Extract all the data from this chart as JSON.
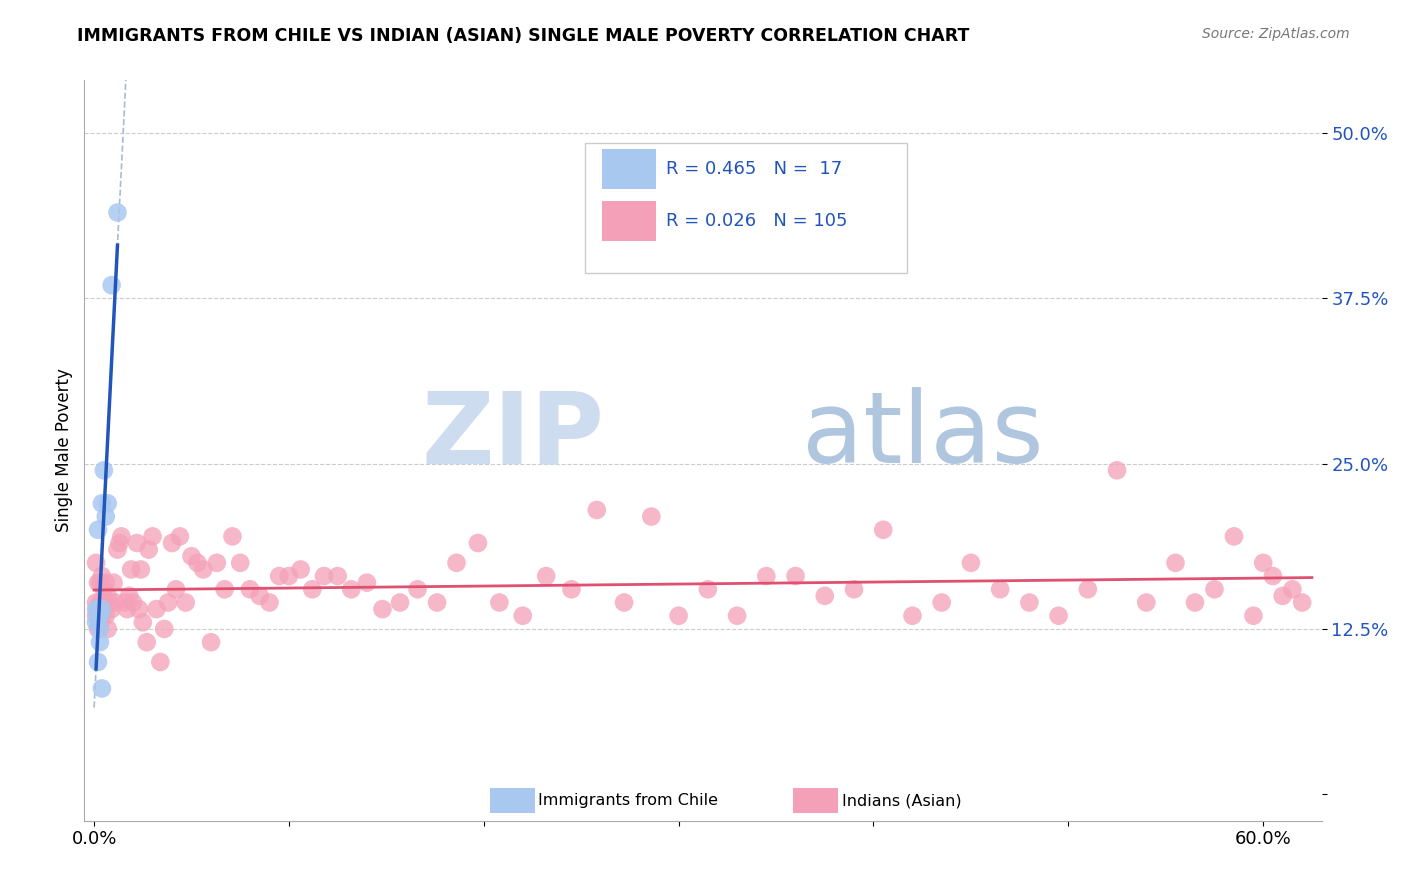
{
  "title": "IMMIGRANTS FROM CHILE VS INDIAN (ASIAN) SINGLE MALE POVERTY CORRELATION CHART",
  "source": "Source: ZipAtlas.com",
  "chile_R": 0.465,
  "chile_N": 17,
  "indian_R": 0.026,
  "indian_N": 105,
  "chile_color": "#a8c8f0",
  "indian_color": "#f4a0b8",
  "chile_line_color": "#2255bb",
  "indian_line_color": "#e05070",
  "dash_line_color": "#aabbd0",
  "legend_text_color": "#2255bb",
  "watermark_zip_color": "#cddcee",
  "watermark_atlas_color": "#a8c0dc",
  "chile_x": [
    0.001,
    0.001,
    0.002,
    0.002,
    0.002,
    0.002,
    0.003,
    0.003,
    0.003,
    0.004,
    0.004,
    0.004,
    0.005,
    0.006,
    0.007,
    0.009,
    0.012
  ],
  "chile_y": [
    0.13,
    0.14,
    0.2,
    0.135,
    0.135,
    0.1,
    0.135,
    0.125,
    0.115,
    0.22,
    0.08,
    0.14,
    0.245,
    0.21,
    0.22,
    0.385,
    0.44
  ],
  "indian_x": [
    0.001,
    0.001,
    0.001,
    0.002,
    0.002,
    0.002,
    0.002,
    0.003,
    0.003,
    0.003,
    0.004,
    0.004,
    0.004,
    0.005,
    0.005,
    0.006,
    0.006,
    0.007,
    0.007,
    0.008,
    0.009,
    0.01,
    0.011,
    0.012,
    0.013,
    0.014,
    0.016,
    0.017,
    0.018,
    0.019,
    0.02,
    0.022,
    0.023,
    0.024,
    0.025,
    0.027,
    0.028,
    0.03,
    0.032,
    0.034,
    0.036,
    0.038,
    0.04,
    0.042,
    0.044,
    0.047,
    0.05,
    0.053,
    0.056,
    0.06,
    0.063,
    0.067,
    0.071,
    0.075,
    0.08,
    0.085,
    0.09,
    0.095,
    0.1,
    0.106,
    0.112,
    0.118,
    0.125,
    0.132,
    0.14,
    0.148,
    0.157,
    0.166,
    0.176,
    0.186,
    0.197,
    0.208,
    0.22,
    0.232,
    0.245,
    0.258,
    0.272,
    0.286,
    0.3,
    0.315,
    0.33,
    0.345,
    0.36,
    0.375,
    0.39,
    0.405,
    0.42,
    0.435,
    0.45,
    0.465,
    0.48,
    0.495,
    0.51,
    0.525,
    0.54,
    0.555,
    0.565,
    0.575,
    0.585,
    0.595,
    0.6,
    0.605,
    0.61,
    0.615,
    0.62
  ],
  "indian_y": [
    0.145,
    0.175,
    0.135,
    0.16,
    0.14,
    0.135,
    0.125,
    0.145,
    0.16,
    0.13,
    0.165,
    0.14,
    0.135,
    0.145,
    0.155,
    0.16,
    0.135,
    0.15,
    0.125,
    0.145,
    0.14,
    0.16,
    0.145,
    0.185,
    0.19,
    0.195,
    0.145,
    0.14,
    0.15,
    0.17,
    0.145,
    0.19,
    0.14,
    0.17,
    0.13,
    0.115,
    0.185,
    0.195,
    0.14,
    0.1,
    0.125,
    0.145,
    0.19,
    0.155,
    0.195,
    0.145,
    0.18,
    0.175,
    0.17,
    0.115,
    0.175,
    0.155,
    0.195,
    0.175,
    0.155,
    0.15,
    0.145,
    0.165,
    0.165,
    0.17,
    0.155,
    0.165,
    0.165,
    0.155,
    0.16,
    0.14,
    0.145,
    0.155,
    0.145,
    0.175,
    0.19,
    0.145,
    0.135,
    0.165,
    0.155,
    0.215,
    0.145,
    0.21,
    0.135,
    0.155,
    0.135,
    0.165,
    0.165,
    0.15,
    0.155,
    0.2,
    0.135,
    0.145,
    0.175,
    0.155,
    0.145,
    0.135,
    0.155,
    0.245,
    0.145,
    0.175,
    0.145,
    0.155,
    0.195,
    0.135,
    0.175,
    0.165,
    0.15,
    0.155,
    0.145
  ],
  "xlim": [
    -0.005,
    0.63
  ],
  "ylim": [
    -0.02,
    0.54
  ],
  "xticks": [
    0.0,
    0.1,
    0.2,
    0.3,
    0.4,
    0.5,
    0.6
  ],
  "xticklabels": [
    "0.0%",
    "",
    "",
    "",
    "",
    "",
    "60.0%"
  ],
  "yticks": [
    0.0,
    0.125,
    0.25,
    0.375,
    0.5
  ],
  "yticklabels": [
    "",
    "12.5%",
    "25.0%",
    "37.5%",
    "50.0%"
  ]
}
